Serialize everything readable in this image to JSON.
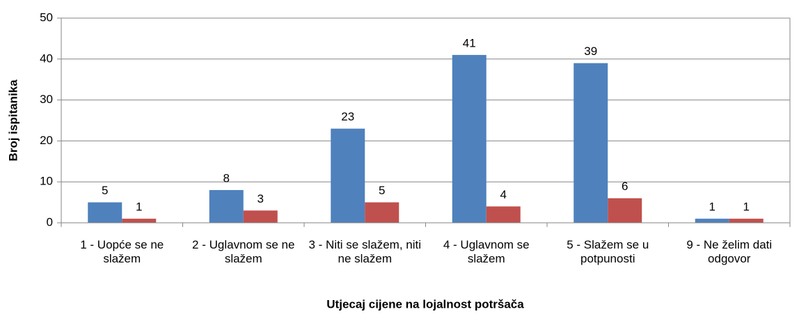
{
  "chart_data": {
    "type": "bar",
    "x_label": "Utjecaj cijene na lojalnost potršača",
    "y_label": "Broj ispitanika",
    "categories": [
      "1 - Uopće se ne slažem",
      "2 - Uglavnom se ne slažem",
      "3 - Niti se slažem, niti ne slažem",
      "4 - Uglavnom se slažem",
      "5 - Slažem se u potpunosti",
      "9 - Ne želim dati odgovor"
    ],
    "series": [
      {
        "color": "#4f81bd",
        "values": [
          5,
          8,
          23,
          41,
          39,
          1
        ]
      },
      {
        "color": "#c0504d",
        "values": [
          1,
          3,
          5,
          4,
          6,
          1
        ]
      }
    ],
    "ylim": [
      0,
      50
    ],
    "yticks": [
      0,
      10,
      20,
      30,
      40,
      50
    ],
    "grid": true
  }
}
